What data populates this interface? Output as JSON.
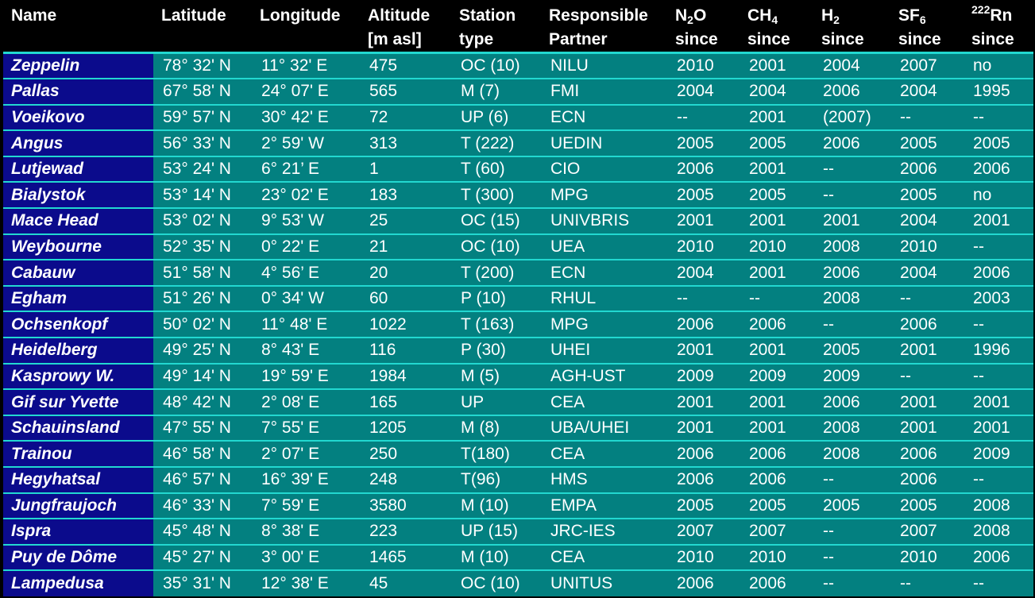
{
  "headers": {
    "name": "Name",
    "latitude": "Latitude",
    "longitude": "Longitude",
    "altitude_1": "Altitude",
    "altitude_2": "[m asl]",
    "station_type_1": "Station",
    "station_type_2": "type",
    "partner_1": "Responsible",
    "partner_2": "Partner",
    "n2o_main": "N",
    "n2o_sub": "2",
    "n2o_tail": "O",
    "ch4_main": "CH",
    "ch4_sub": "4",
    "h2_main": "H",
    "h2_sub": "2",
    "sf6_main": "SF",
    "sf6_sub": "6",
    "rn_sup": "222",
    "rn_main": "Rn",
    "since": "since"
  },
  "rows": [
    {
      "name": "Zeppelin",
      "lat": "78° 32' N",
      "lon": "11° 32' E",
      "alt": "475",
      "type": "OC (10)",
      "partner": "NILU",
      "n2o": "2010",
      "ch4": "2001",
      "h2": "2004",
      "sf6": "2007",
      "rn": "no"
    },
    {
      "name": "Pallas",
      "lat": "67° 58' N",
      "lon": "24° 07' E",
      "alt": "565",
      "type": "M (7)",
      "partner": "FMI",
      "n2o": "2004",
      "ch4": "2004",
      "h2": "2006",
      "sf6": "2004",
      "rn": "1995"
    },
    {
      "name": "Voeikovo",
      "lat": "59° 57' N",
      "lon": "30° 42' E",
      "alt": "72",
      "type": "UP (6)",
      "partner": "ECN",
      "n2o": "--",
      "ch4": "2001",
      "h2": "(2007)",
      "sf6": "--",
      "rn": "--"
    },
    {
      "name": "Angus",
      "lat": "56° 33' N",
      "lon": "2° 59' W",
      "alt": "313",
      "type": "T (222)",
      "partner": "UEDIN",
      "n2o": "2005",
      "ch4": "2005",
      "h2": "2006",
      "sf6": "2005",
      "rn": "2005"
    },
    {
      "name": "Lutjewad",
      "lat": "53° 24' N",
      "lon": "6° 21’ E",
      "alt": "1",
      "type": "T (60)",
      "partner": "CIO",
      "n2o": "2006",
      "ch4": "2001",
      "h2": "--",
      "sf6": "2006",
      "rn": "2006"
    },
    {
      "name": "Bialystok",
      "lat": "53° 14' N",
      "lon": "23° 02' E",
      "alt": "183",
      "type": "T (300)",
      "partner": "MPG",
      "n2o": "2005",
      "ch4": "2005",
      "h2": "--",
      "sf6": "2005",
      "rn": "no"
    },
    {
      "name": "Mace Head",
      "lat": "53° 02' N",
      "lon": "9° 53' W",
      "alt": "25",
      "type": "OC (15)",
      "partner": "UNIVBRIS",
      "n2o": "2001",
      "ch4": "2001",
      "h2": "2001",
      "sf6": "2004",
      "rn": "2001"
    },
    {
      "name": "Weybourne",
      "lat": "52° 35' N",
      "lon": "0° 22' E",
      "alt": "21",
      "type": "OC (10)",
      "partner": "UEA",
      "n2o": "2010",
      "ch4": "2010",
      "h2": "2008",
      "sf6": "2010",
      "rn": "--"
    },
    {
      "name": "Cabauw",
      "lat": "51° 58' N",
      "lon": "4° 56’ E",
      "alt": "20",
      "type": "T (200)",
      "partner": "ECN",
      "n2o": "2004",
      "ch4": "2001",
      "h2": "2006",
      "sf6": "2004",
      "rn": "2006"
    },
    {
      "name": "Egham",
      "lat": "51° 26' N",
      "lon": "0° 34' W",
      "alt": "60",
      "type": "P (10)",
      "partner": "RHUL",
      "n2o": "--",
      "ch4": "--",
      "h2": "2008",
      "sf6": "--",
      "rn": "2003"
    },
    {
      "name": "Ochsenkopf",
      "lat": "50° 02' N",
      "lon": "11° 48' E",
      "alt": "1022",
      "type": "T (163)",
      "partner": "MPG",
      "n2o": "2006",
      "ch4": "2006",
      "h2": "--",
      "sf6": "2006",
      "rn": "--"
    },
    {
      "name": "Heidelberg",
      "lat": "49° 25' N",
      "lon": "8° 43' E",
      "alt": "116",
      "type": "P (30)",
      "partner": "UHEI",
      "n2o": "2001",
      "ch4": "2001",
      "h2": "2005",
      "sf6": "2001",
      "rn": "1996"
    },
    {
      "name": "Kasprowy W.",
      "lat": "49° 14' N",
      "lon": "19° 59' E",
      "alt": "1984",
      "type": "M (5)",
      "partner": "AGH-UST",
      "n2o": "2009",
      "ch4": "2009",
      "h2": "2009",
      "sf6": "--",
      "rn": "--"
    },
    {
      "name": "Gif sur Yvette",
      "lat": "48° 42' N",
      "lon": "2° 08' E",
      "alt": "165",
      "type": "UP",
      "partner": "CEA",
      "n2o": "2001",
      "ch4": "2001",
      "h2": "2006",
      "sf6": "2001",
      "rn": "2001"
    },
    {
      "name": "Schauinsland",
      "lat": "47° 55' N",
      "lon": "7° 55' E",
      "alt": "1205",
      "type": "M (8)",
      "partner": "UBA/UHEI",
      "n2o": "2001",
      "ch4": "2001",
      "h2": "2008",
      "sf6": "2001",
      "rn": "2001"
    },
    {
      "name": "Trainou",
      "lat": "46° 58' N",
      "lon": "2° 07' E",
      "alt": "250",
      "type": "T(180)",
      "partner": "CEA",
      "n2o": "2006",
      "ch4": "2006",
      "h2": "2008",
      "sf6": "2006",
      "rn": "2009"
    },
    {
      "name": "Hegyhatsal",
      "lat": "46° 57' N",
      "lon": "16° 39' E",
      "alt": "248",
      "type": "T(96)",
      "partner": "HMS",
      "n2o": "2006",
      "ch4": "2006",
      "h2": "--",
      "sf6": "2006",
      "rn": "--"
    },
    {
      "name": "Jungfraujoch",
      "lat": "46° 33' N",
      "lon": "7° 59' E",
      "alt": "3580",
      "type": "M (10)",
      "partner": "EMPA",
      "n2o": "2005",
      "ch4": "2005",
      "h2": "2005",
      "sf6": "2005",
      "rn": "2008"
    },
    {
      "name": "Ispra",
      "lat": "45° 48' N",
      "lon": "8° 38' E",
      "alt": "223",
      "type": "UP (15)",
      "partner": "JRC-IES",
      "n2o": "2007",
      "ch4": "2007",
      "h2": "--",
      "sf6": "2007",
      "rn": "2008"
    },
    {
      "name": "Puy de Dôme",
      "lat": "45° 27' N",
      "lon": "3° 00' E",
      "alt": "1465",
      "type": "M (10)",
      "partner": "CEA",
      "n2o": "2010",
      "ch4": "2010",
      "h2": "--",
      "sf6": "2010",
      "rn": "2006"
    },
    {
      "name": "Lampedusa",
      "lat": "35° 31' N",
      "lon": "12° 38' E",
      "alt": "45",
      "type": "OC (10)",
      "partner": "UNITUS",
      "n2o": "2006",
      "ch4": "2006",
      "h2": "--",
      "sf6": "--",
      "rn": "--"
    }
  ],
  "colors": {
    "header_bg": "#000000",
    "name_cell_bg": "#0b0b8c",
    "data_cell_bg": "#038080",
    "row_border": "#22d8d0",
    "text": "#ffffff"
  }
}
